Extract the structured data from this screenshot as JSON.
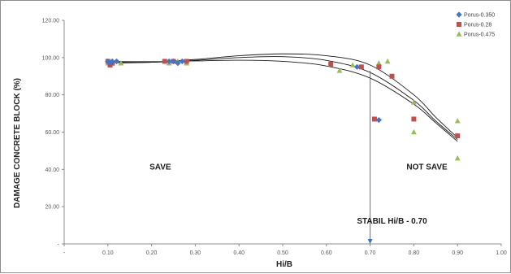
{
  "chart_data": {
    "type": "scatter",
    "xlabel": "Hi/B",
    "ylabel": "DAMAGE CONCRETE BLOCK (%)",
    "xlim": [
      0,
      1.0
    ],
    "ylim": [
      0,
      120
    ],
    "x_ticks": [
      "-",
      "0.10",
      "0.20",
      "0.30",
      "0.40",
      "0.50",
      "0.60",
      "0.70",
      "0.80",
      "0.90",
      "1.00"
    ],
    "y_ticks": [
      "-",
      "20.00",
      "40.00",
      "60.00",
      "80.00",
      "100.00",
      "120.00"
    ],
    "grid": false,
    "legend_position": "top-right",
    "series": [
      {
        "name": "Porus-0.350",
        "color": "#4472c4",
        "marker": "diamond",
        "points": [
          [
            0.1,
            98
          ],
          [
            0.105,
            97
          ],
          [
            0.11,
            98
          ],
          [
            0.12,
            98
          ],
          [
            0.24,
            98
          ],
          [
            0.25,
            98
          ],
          [
            0.26,
            97
          ],
          [
            0.27,
            98
          ],
          [
            0.67,
            95
          ],
          [
            0.72,
            66.5
          ]
        ]
      },
      {
        "name": "Porus-0.28",
        "color": "#c0504d",
        "marker": "square",
        "points": [
          [
            0.1,
            98
          ],
          [
            0.105,
            96
          ],
          [
            0.11,
            97
          ],
          [
            0.23,
            98
          ],
          [
            0.25,
            98
          ],
          [
            0.28,
            98
          ],
          [
            0.61,
            96.5
          ],
          [
            0.68,
            95
          ],
          [
            0.71,
            67
          ],
          [
            0.72,
            95
          ],
          [
            0.75,
            90
          ],
          [
            0.8,
            67
          ],
          [
            0.9,
            58
          ]
        ]
      },
      {
        "name": "Porus-0.475",
        "color": "#9bbb59",
        "marker": "triangle",
        "points": [
          [
            0.1,
            97
          ],
          [
            0.12,
            98
          ],
          [
            0.13,
            97
          ],
          [
            0.24,
            97
          ],
          [
            0.26,
            98
          ],
          [
            0.28,
            97
          ],
          [
            0.63,
            93
          ],
          [
            0.66,
            96
          ],
          [
            0.72,
            97
          ],
          [
            0.74,
            98
          ],
          [
            0.8,
            60
          ],
          [
            0.8,
            76
          ],
          [
            0.9,
            66
          ],
          [
            0.9,
            46
          ]
        ]
      }
    ],
    "trendlines": [
      {
        "points": [
          [
            0.1,
            98
          ],
          [
            0.2,
            97.8
          ],
          [
            0.3,
            98.2
          ],
          [
            0.4,
            98.6
          ],
          [
            0.5,
            98
          ],
          [
            0.6,
            95.5
          ],
          [
            0.7,
            89
          ],
          [
            0.8,
            75
          ],
          [
            0.85,
            65
          ],
          [
            0.9,
            55
          ]
        ]
      },
      {
        "points": [
          [
            0.1,
            97.5
          ],
          [
            0.2,
            97.5
          ],
          [
            0.3,
            98.5
          ],
          [
            0.4,
            100
          ],
          [
            0.5,
            100.5
          ],
          [
            0.6,
            98.5
          ],
          [
            0.7,
            92
          ],
          [
            0.8,
            77
          ],
          [
            0.85,
            66
          ],
          [
            0.9,
            56
          ]
        ]
      },
      {
        "points": [
          [
            0.1,
            97
          ],
          [
            0.2,
            97.5
          ],
          [
            0.3,
            99
          ],
          [
            0.4,
            101
          ],
          [
            0.5,
            102
          ],
          [
            0.6,
            101
          ],
          [
            0.7,
            96
          ],
          [
            0.8,
            80
          ],
          [
            0.85,
            68
          ],
          [
            0.9,
            57
          ]
        ]
      }
    ],
    "annotations": {
      "save": {
        "text": "SAVE",
        "x": 0.22,
        "y": 40
      },
      "not_save": {
        "text": "NOT SAVE",
        "x": 0.83,
        "y": 40
      },
      "stabil": {
        "text": "STABIL Hi/B - 0.70",
        "x": 0.75,
        "y": 11
      }
    },
    "stabil_line": {
      "x": 0.7,
      "y_top": 93,
      "y_bottom": 0,
      "color": "#4472c4"
    }
  }
}
